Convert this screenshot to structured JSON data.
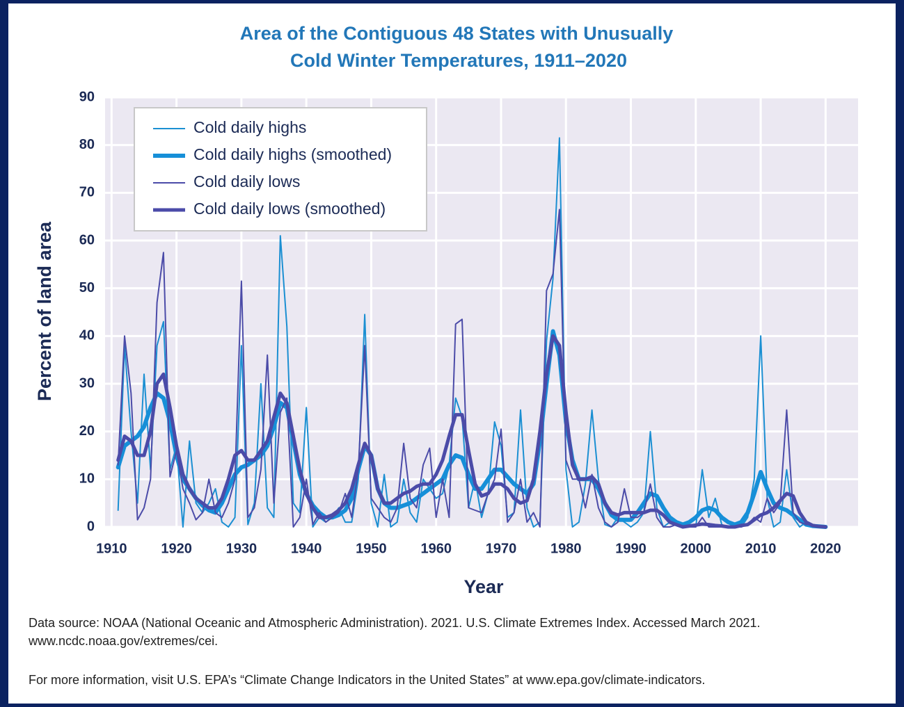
{
  "chart_data": {
    "type": "line",
    "title": [
      "Area of the Contiguous 48 States with Unusually",
      "Cold Winter Temperatures, 1911–2020"
    ],
    "x_label": "Year",
    "y_label": "Percent of land area",
    "x": [
      1911,
      1912,
      1913,
      1914,
      1915,
      1916,
      1917,
      1918,
      1919,
      1920,
      1921,
      1922,
      1923,
      1924,
      1925,
      1926,
      1927,
      1928,
      1929,
      1930,
      1931,
      1932,
      1933,
      1934,
      1935,
      1936,
      1937,
      1938,
      1939,
      1940,
      1941,
      1942,
      1943,
      1944,
      1945,
      1946,
      1947,
      1948,
      1949,
      1950,
      1951,
      1952,
      1953,
      1954,
      1955,
      1956,
      1957,
      1958,
      1959,
      1960,
      1961,
      1962,
      1963,
      1964,
      1965,
      1966,
      1967,
      1968,
      1969,
      1970,
      1971,
      1972,
      1973,
      1974,
      1975,
      1976,
      1977,
      1978,
      1979,
      1980,
      1981,
      1982,
      1983,
      1984,
      1985,
      1986,
      1987,
      1988,
      1989,
      1990,
      1991,
      1992,
      1993,
      1994,
      1995,
      1996,
      1997,
      1998,
      1999,
      2000,
      2001,
      2002,
      2003,
      2004,
      2005,
      2006,
      2007,
      2008,
      2009,
      2010,
      2011,
      2012,
      2013,
      2014,
      2015,
      2016,
      2017,
      2018,
      2019,
      2020
    ],
    "series": [
      {
        "name": "Cold daily highs",
        "color": "#1b8fd2",
        "linewidth": 2,
        "values": [
          3.5,
          38,
          20,
          5,
          32,
          12,
          38,
          43,
          12,
          17,
          0,
          18,
          5,
          3,
          5,
          8,
          1,
          0,
          2,
          38,
          0.5,
          5,
          30,
          4,
          2,
          61,
          42,
          5,
          3,
          25,
          0,
          2,
          1,
          2,
          4,
          1,
          1,
          10,
          44.5,
          5,
          0,
          11,
          0,
          1,
          10,
          3,
          1,
          10,
          8,
          6,
          7,
          13,
          27,
          23,
          4,
          10,
          2,
          7,
          22,
          17,
          2,
          3,
          24.5,
          4,
          0,
          1,
          39,
          52,
          81.5,
          12,
          0,
          1,
          9,
          24.5,
          10,
          0.5,
          0,
          2,
          1,
          0,
          1,
          3,
          20,
          4,
          0,
          1,
          1,
          0,
          0,
          0,
          12,
          2,
          6,
          0.5,
          0,
          0.5,
          0,
          2,
          10,
          40,
          6,
          0,
          1,
          12,
          2,
          0,
          1,
          0.5,
          0.2,
          0
        ]
      },
      {
        "name": "Cold daily highs (smoothed)",
        "color": "#168fd8",
        "linewidth": 6,
        "values": [
          12.5,
          17,
          18,
          19,
          21,
          25,
          28,
          27,
          22,
          15,
          10,
          8,
          6,
          4.5,
          3.5,
          3,
          5,
          8,
          11,
          12.5,
          13,
          14,
          15,
          17,
          21,
          26,
          25,
          18,
          11,
          7,
          4.5,
          3,
          2,
          2,
          2.5,
          3.5,
          6,
          12,
          17,
          15,
          8,
          5,
          4,
          4,
          4.5,
          5,
          6,
          7,
          8,
          9,
          10,
          13,
          15,
          14.5,
          11,
          8,
          8,
          10,
          12,
          12,
          10.5,
          9,
          8,
          7,
          9,
          18,
          30,
          41,
          36,
          22,
          14,
          10,
          10,
          10,
          8,
          5,
          2.5,
          1.5,
          1.5,
          1.5,
          3,
          5,
          7,
          6.5,
          4,
          2,
          1,
          0.5,
          1,
          2,
          3.5,
          4,
          3.5,
          2,
          1,
          0.5,
          1,
          3,
          7,
          11.5,
          8,
          5,
          4,
          3.5,
          2.5,
          1.5,
          0.5,
          0.2,
          0.1,
          0
        ]
      },
      {
        "name": "Cold daily lows",
        "color": "#4b4ba8",
        "linewidth": 2,
        "values": [
          13,
          40,
          28,
          1.5,
          4,
          10,
          47,
          57.5,
          10.5,
          16,
          8,
          5,
          1.5,
          3,
          10,
          3,
          2,
          5,
          10,
          51.5,
          2,
          4,
          12,
          36,
          5,
          24,
          27,
          0,
          2,
          10,
          0.5,
          3,
          1,
          2,
          3,
          7,
          2,
          12,
          38,
          6,
          4,
          2,
          1,
          4,
          17.5,
          6,
          4,
          13,
          16.5,
          2,
          10,
          2,
          42.5,
          43.5,
          4,
          3.5,
          3,
          7,
          10,
          20.5,
          1,
          3,
          10,
          1,
          3,
          0,
          49.5,
          53,
          66.5,
          14,
          10,
          10,
          4,
          11,
          4,
          1,
          0,
          1,
          8,
          2,
          2,
          3,
          9,
          2,
          0,
          0,
          0.5,
          0,
          0,
          0,
          2,
          0,
          0,
          0,
          0,
          0,
          0,
          0.5,
          2,
          1,
          6,
          3,
          5,
          24.5,
          3,
          1,
          0.5,
          0.5,
          0,
          0
        ]
      },
      {
        "name": "Cold daily lows (smoothed)",
        "color": "#4b4ba8",
        "linewidth": 5,
        "values": [
          14,
          19,
          18,
          15,
          15,
          20,
          30,
          32,
          25,
          17,
          11,
          8,
          6,
          5,
          4,
          4,
          6,
          10,
          15,
          16,
          14,
          14,
          16,
          18,
          23,
          28,
          26,
          19,
          12,
          7,
          4,
          2,
          2,
          2.5,
          3.5,
          5,
          8,
          13,
          17.5,
          15,
          8,
          5,
          5,
          6,
          7,
          7.5,
          8.5,
          9,
          9,
          11,
          14,
          19,
          23.5,
          23.5,
          16,
          9,
          6.5,
          7,
          9,
          9,
          8,
          6,
          5,
          5.5,
          10,
          20,
          32,
          40,
          38,
          24,
          13,
          10,
          10,
          10.5,
          9,
          5,
          3,
          2.5,
          3,
          3,
          3,
          3,
          3.5,
          3.5,
          2.5,
          1,
          0.5,
          0,
          0.2,
          0.4,
          0.6,
          0.5,
          0.3,
          0.2,
          0,
          0,
          0.3,
          0.5,
          1.5,
          2.5,
          3,
          4,
          5.5,
          7,
          6.5,
          3,
          1,
          0.3,
          0.1,
          0
        ]
      }
    ],
    "xlim": [
      1909,
      2025
    ],
    "xticks": [
      1910,
      1920,
      1930,
      1940,
      1950,
      1960,
      1970,
      1980,
      1990,
      2000,
      2010,
      2020
    ],
    "ylim": [
      0,
      90
    ],
    "yticks": [
      0,
      10,
      20,
      30,
      40,
      50,
      60,
      70,
      80,
      90
    ],
    "grid": true,
    "legend": "upper left",
    "source": [
      "Data source: NOAA (National Oceanic and Atmospheric Administration). 2021. U.S. Climate Extremes Index. Accessed March 2021.",
      "www.ncdc.noaa.gov/extremes/cei."
    ],
    "note": "For more information, visit U.S. EPA’s “Climate Change Indicators in the United States” at www.epa.gov/climate-indicators."
  }
}
